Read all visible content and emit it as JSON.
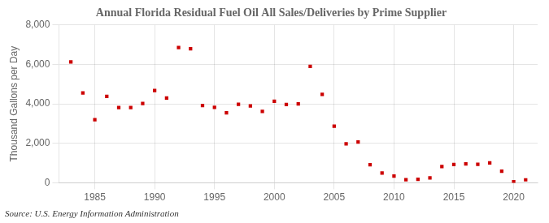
{
  "chart_data": {
    "type": "scatter",
    "title": "Annual Florida Residual Fuel Oil All Sales/Deliveries by Prime Supplier",
    "ylabel": "Thousand Gallons per Day",
    "source": "Source: U.S. Energy Information Administration",
    "x": [
      1983,
      1984,
      1985,
      1986,
      1987,
      1988,
      1989,
      1990,
      1991,
      1992,
      1993,
      1994,
      1995,
      1996,
      1997,
      1998,
      1999,
      2000,
      2001,
      2002,
      2003,
      2004,
      2005,
      2006,
      2007,
      2008,
      2009,
      2010,
      2011,
      2012,
      2013,
      2014,
      2015,
      2016,
      2017,
      2018,
      2019,
      2020,
      2021
    ],
    "values": [
      6130,
      4550,
      3200,
      4380,
      3810,
      3810,
      4020,
      4680,
      4300,
      6860,
      6790,
      3920,
      3820,
      3550,
      3980,
      3900,
      3620,
      4130,
      3970,
      4000,
      5900,
      4480,
      2870,
      1970,
      2070,
      920,
      490,
      340,
      160,
      180,
      250,
      820,
      930,
      960,
      940,
      1010,
      590,
      50,
      150
    ],
    "color": "#cc0000",
    "marker": "square",
    "xlim": [
      1982,
      2022
    ],
    "xticks": [
      1985,
      1990,
      1995,
      2000,
      2005,
      2010,
      2015,
      2020
    ],
    "ylim": [
      0,
      8000
    ],
    "yticks": [
      0,
      {
        "value": 2000,
        "label": "2,000"
      },
      {
        "value": 4000,
        "label": "4,000"
      },
      {
        "value": 6000,
        "label": "6,000"
      },
      {
        "value": 8000,
        "label": "8,000"
      }
    ],
    "grid": true
  }
}
